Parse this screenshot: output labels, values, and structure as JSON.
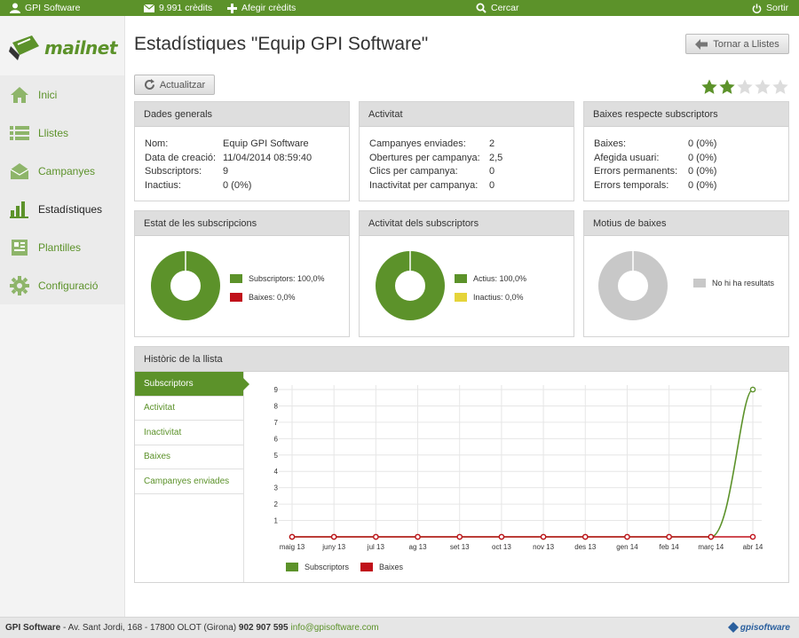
{
  "topbar": {
    "user": "GPI Software",
    "credits": "9.991 crèdits",
    "add_credits": "Afegir crèdits",
    "search": "Cercar",
    "logout": "Sortir"
  },
  "brand": {
    "name": "mailnet",
    "color": "#5c922a"
  },
  "nav": [
    {
      "label": "Inici",
      "icon": "home-icon"
    },
    {
      "label": "Llistes",
      "icon": "list-icon"
    },
    {
      "label": "Campanyes",
      "icon": "envelope-icon"
    },
    {
      "label": "Estadístiques",
      "icon": "bar-chart-icon",
      "active": true
    },
    {
      "label": "Plantilles",
      "icon": "template-icon"
    },
    {
      "label": "Configuració",
      "icon": "gear-icon"
    }
  ],
  "page": {
    "title": "Estadístiques \"Equip GPI Software\"",
    "back_label": "Tornar a Llistes",
    "update_label": "Actualitzar",
    "rating": 2,
    "rating_max": 5
  },
  "general": {
    "title": "Dades generals",
    "rows": [
      {
        "k": "Nom:",
        "v": "Equip GPI Software"
      },
      {
        "k": "Data de creació:",
        "v": "11/04/2014 08:59:40"
      },
      {
        "k": "Subscriptors:",
        "v": "9"
      },
      {
        "k": "Inactius:",
        "v": "0 (0%)"
      }
    ]
  },
  "activity": {
    "title": "Activitat",
    "rows": [
      {
        "k": "Campanyes enviades:",
        "v": "2"
      },
      {
        "k": "Obertures per campanya:",
        "v": "2,5"
      },
      {
        "k": "Clics per campanya:",
        "v": "0"
      },
      {
        "k": "Inactivitat per campanya:",
        "v": "0"
      }
    ]
  },
  "unsub": {
    "title": "Baixes respecte subscriptors",
    "rows": [
      {
        "k": "Baixes:",
        "v": "0 (0%)"
      },
      {
        "k": "Afegida usuari:",
        "v": "0 (0%)"
      },
      {
        "k": "Errors permanents:",
        "v": "0 (0%)"
      },
      {
        "k": "Errors temporals:",
        "v": "0 (0%)"
      }
    ]
  },
  "donuts": [
    {
      "title": "Estat de les subscripcions",
      "legend": [
        {
          "label": "Subscriptors: 100,0%",
          "color": "#5c922a",
          "value": 100
        },
        {
          "label": "Baixes: 0,0%",
          "color": "#c0101a",
          "value": 0
        }
      ]
    },
    {
      "title": "Activitat dels subscriptors",
      "legend": [
        {
          "label": "Actius: 100,0%",
          "color": "#5c922a",
          "value": 100
        },
        {
          "label": "Inactius: 0,0%",
          "color": "#e5d43a",
          "value": 0
        }
      ]
    },
    {
      "title": "Motius de baixes",
      "legend": [
        {
          "label": "No hi ha resultats",
          "color": "#c8c8c8",
          "value": 100
        }
      ]
    }
  ],
  "history": {
    "title": "Històric de la llista",
    "tabs": [
      "Subscriptors",
      "Activitat",
      "Inactivitat",
      "Baixes",
      "Campanyes enviades"
    ],
    "active_tab": 0
  },
  "chart_data": {
    "type": "line",
    "categories": [
      "maig 13",
      "juny 13",
      "jul 13",
      "ag 13",
      "set 13",
      "oct 13",
      "nov 13",
      "des 13",
      "gen 14",
      "feb 14",
      "març 14",
      "abr 14"
    ],
    "ylim": [
      0,
      9
    ],
    "yticks": [
      1,
      2,
      3,
      4,
      5,
      6,
      7,
      8,
      9
    ],
    "grid": true,
    "legend_position": "bottom-left",
    "series": [
      {
        "name": "Subscriptors",
        "color": "#5c922a",
        "values": [
          0,
          0,
          0,
          0,
          0,
          0,
          0,
          0,
          0,
          0,
          0,
          9
        ]
      },
      {
        "name": "Baixes",
        "color": "#c0101a",
        "values": [
          0,
          0,
          0,
          0,
          0,
          0,
          0,
          0,
          0,
          0,
          0,
          0
        ]
      }
    ]
  },
  "footer": {
    "company": "GPI Software",
    "address": " - Av. Sant Jordi, 168 - 17800 OLOT (Girona) ",
    "phone": "902 907 595",
    "email": "info@gpisoftware.com",
    "logo": "gpisoftware"
  }
}
